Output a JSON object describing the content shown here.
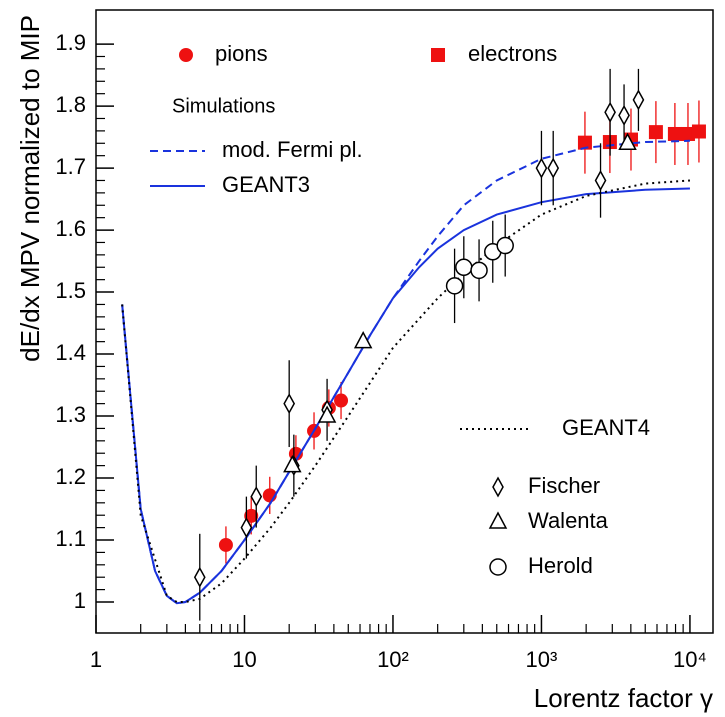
{
  "chart_data": {
    "type": "scatter",
    "xlabel": "Lorentz factor γ",
    "ylabel": "dE/dx MPV normalized to MIP",
    "legend_heading": "Simulations",
    "xscale": "log",
    "xlim": [
      1,
      14300
    ],
    "ylim": [
      0.95,
      1.955
    ],
    "xticks": [
      1,
      10,
      {
        "value": 100,
        "label": "10²"
      },
      {
        "value": 1000,
        "label": "10³"
      },
      {
        "value": 10000,
        "label": "10⁴"
      }
    ],
    "yticks": [
      1,
      1.1,
      1.2,
      1.3,
      1.4,
      1.5,
      1.6,
      1.7,
      1.8,
      1.9
    ],
    "series": [
      {
        "name": "pions",
        "type": "scatter",
        "marker": "circle",
        "filled": true,
        "color": "#ee1111",
        "x": [
          7.5,
          11.1,
          14.8,
          22.2,
          29.4,
          37,
          44.7
        ],
        "values": [
          1.092,
          1.139,
          1.172,
          1.239,
          1.276,
          1.313,
          1.325
        ],
        "errors": [
          0.03,
          0.03,
          0.03,
          0.03,
          0.03,
          0.03,
          0.03
        ]
      },
      {
        "name": "electrons",
        "type": "scatter",
        "marker": "square",
        "filled": true,
        "color": "#ee1111",
        "x": [
          1963,
          2890,
          4009,
          5900,
          7920,
          9700,
          11500
        ],
        "values": [
          1.741,
          1.742,
          1.746,
          1.758,
          1.755,
          1.755,
          1.759
        ],
        "errors": [
          0.05,
          0.05,
          0.05,
          0.05,
          0.05,
          0.05,
          0.05
        ]
      },
      {
        "name": "mod. Fermi pl.",
        "type": "line",
        "dash": "8,5",
        "color": "#1a33dd",
        "x": [
          1.5,
          2,
          2.5,
          3,
          3.5,
          4,
          5,
          7,
          10,
          15,
          20,
          30,
          50,
          70,
          100,
          150,
          200,
          300,
          500,
          1000,
          2000,
          5000,
          10000
        ],
        "values": [
          1.48,
          1.15,
          1.05,
          1.01,
          0.998,
          1.0,
          1.015,
          1.05,
          1.1,
          1.16,
          1.21,
          1.28,
          1.37,
          1.43,
          1.49,
          1.55,
          1.59,
          1.64,
          1.68,
          1.715,
          1.733,
          1.742,
          1.744
        ]
      },
      {
        "name": "GEANT3",
        "type": "line",
        "color": "#1a33dd",
        "x": [
          1.5,
          2,
          2.5,
          3,
          3.5,
          4,
          5,
          7,
          10,
          15,
          20,
          30,
          50,
          70,
          100,
          150,
          200,
          300,
          500,
          1000,
          2000,
          5000,
          10000
        ],
        "values": [
          1.48,
          1.15,
          1.05,
          1.01,
          0.998,
          1.0,
          1.015,
          1.05,
          1.1,
          1.16,
          1.21,
          1.28,
          1.37,
          1.43,
          1.49,
          1.54,
          1.57,
          1.6,
          1.625,
          1.645,
          1.658,
          1.665,
          1.667
        ]
      },
      {
        "name": "GEANT4",
        "type": "line",
        "dash": "2,4",
        "color": "#000000",
        "x": [
          1.5,
          2,
          3,
          3.5,
          4,
          5,
          7,
          10,
          15,
          20,
          30,
          50,
          100,
          200,
          300,
          500,
          1000,
          2000,
          5000,
          10000
        ],
        "values": [
          1.48,
          1.14,
          1.01,
          1.0,
          1.0,
          1.005,
          1.03,
          1.07,
          1.12,
          1.16,
          1.22,
          1.3,
          1.41,
          1.49,
          1.53,
          1.575,
          1.625,
          1.655,
          1.675,
          1.68
        ]
      },
      {
        "name": "Fischer",
        "type": "scatter",
        "marker": "diamond",
        "filled": false,
        "color": "#000000",
        "x": [
          5,
          10.3,
          12,
          20,
          21.5,
          36,
          1000,
          1200,
          2500,
          2900,
          3600,
          4500
        ],
        "values": [
          1.04,
          1.12,
          1.17,
          1.32,
          1.22,
          1.31,
          1.7,
          1.7,
          1.68,
          1.79,
          1.785,
          1.81
        ],
        "errors": [
          0.07,
          0.05,
          0.05,
          0.07,
          0.05,
          0.05,
          0.06,
          0.06,
          0.06,
          0.07,
          0.05,
          0.05
        ]
      },
      {
        "name": "Walenta",
        "type": "scatter",
        "marker": "triangle",
        "filled": false,
        "color": "#000000",
        "x": [
          21,
          36,
          63,
          3800
        ],
        "values": [
          1.22,
          1.3,
          1.42,
          1.74
        ]
      },
      {
        "name": "Herold",
        "type": "scatter",
        "marker": "circle",
        "filled": false,
        "color": "#000000",
        "x": [
          260,
          300,
          380,
          470,
          570
        ],
        "values": [
          1.51,
          1.54,
          1.535,
          1.565,
          1.575
        ],
        "errors": [
          0.06,
          0.05,
          0.05,
          0.05,
          0.05
        ]
      }
    ]
  }
}
